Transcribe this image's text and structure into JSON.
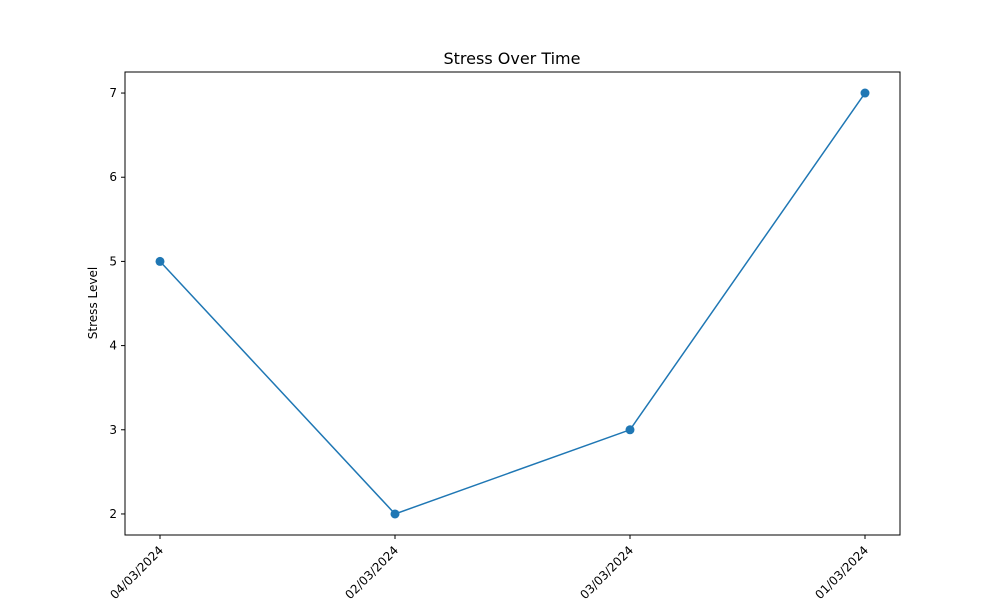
{
  "chart_data": {
    "type": "line",
    "title": "Stress Over Time",
    "xlabel": "",
    "ylabel": "Stress Level",
    "categories": [
      "04/03/2024",
      "02/03/2024",
      "03/03/2024",
      "01/03/2024"
    ],
    "series": [
      {
        "values": [
          5,
          2,
          3,
          7
        ],
        "color": "#1f77b4",
        "marker": "circle"
      }
    ],
    "ylim": [
      1.75,
      7.25
    ],
    "yticks": [
      2,
      3,
      4,
      5,
      6,
      7
    ],
    "grid": false,
    "legend": "none",
    "x_tick_rotation": 45
  }
}
